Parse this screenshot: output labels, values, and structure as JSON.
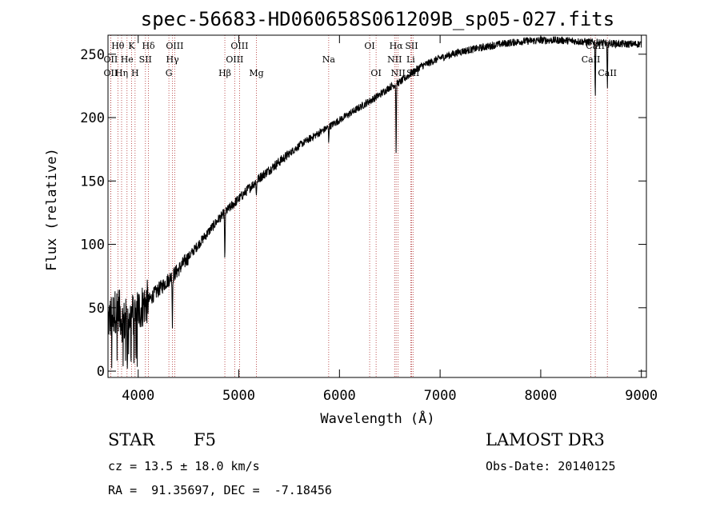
{
  "chart_data": {
    "type": "line",
    "title": "spec-56683-HD060658S061209B_sp05-027.fits",
    "xlabel": "Wavelength (Å)",
    "ylabel": "Flux (relative)",
    "xlim": [
      3700,
      9050
    ],
    "ylim": [
      -5,
      265
    ],
    "x_ticks": [
      4000,
      5000,
      6000,
      7000,
      8000,
      9000
    ],
    "y_ticks": [
      0,
      50,
      100,
      150,
      200,
      250
    ],
    "x_tick_labels": [
      "4000",
      "5000",
      "6000",
      "7000",
      "8000",
      "9000"
    ],
    "y_tick_labels": [
      "0",
      "50",
      "100",
      "150",
      "200",
      "250"
    ],
    "spectral_lines": [
      {
        "label": "OII",
        "wavelength": 3727,
        "row": 2
      },
      {
        "label": "Hθ",
        "wavelength": 3798,
        "row": 1
      },
      {
        "label": "OII",
        "wavelength": 3727,
        "row": 3
      },
      {
        "label": "Hη",
        "wavelength": 3835,
        "row": 3
      },
      {
        "label": "K",
        "wavelength": 3934,
        "row": 1
      },
      {
        "label": "He",
        "wavelength": 3889,
        "row": 2
      },
      {
        "label": "H",
        "wavelength": 3969,
        "row": 3
      },
      {
        "label": "Hδ",
        "wavelength": 4102,
        "row": 1
      },
      {
        "label": "SII",
        "wavelength": 4072,
        "row": 2
      },
      {
        "label": "OIII",
        "wavelength": 4363,
        "row": 1
      },
      {
        "label": "Hγ",
        "wavelength": 4341,
        "row": 2
      },
      {
        "label": "G",
        "wavelength": 4305,
        "row": 3
      },
      {
        "label": "Hβ",
        "wavelength": 4861,
        "row": 3
      },
      {
        "label": "OIII",
        "wavelength": 5007,
        "row": 1
      },
      {
        "label": "OIII",
        "wavelength": 4959,
        "row": 2
      },
      {
        "label": "Mg",
        "wavelength": 5175,
        "row": 3
      },
      {
        "label": "Na",
        "wavelength": 5893,
        "row": 2
      },
      {
        "label": "OI",
        "wavelength": 6300,
        "row": 1
      },
      {
        "label": "OI",
        "wavelength": 6364,
        "row": 3
      },
      {
        "label": "Hα",
        "wavelength": 6563,
        "row": 1
      },
      {
        "label": "SII",
        "wavelength": 6717,
        "row": 1
      },
      {
        "label": "NII",
        "wavelength": 6548,
        "row": 2
      },
      {
        "label": "Li",
        "wavelength": 6708,
        "row": 2
      },
      {
        "label": "NII",
        "wavelength": 6583,
        "row": 3
      },
      {
        "label": "SII",
        "wavelength": 6731,
        "row": 3
      },
      {
        "label": "CaII",
        "wavelength": 8542,
        "row": 1
      },
      {
        "label": "CaII",
        "wavelength": 8498,
        "row": 2
      },
      {
        "label": "CaII",
        "wavelength": 8662,
        "row": 3
      }
    ],
    "spectrum_points": [
      [
        3700,
        40
      ],
      [
        3750,
        45
      ],
      [
        3800,
        50
      ],
      [
        3850,
        38
      ],
      [
        3900,
        42
      ],
      [
        3950,
        45
      ],
      [
        4000,
        48
      ],
      [
        4050,
        52
      ],
      [
        4100,
        55
      ],
      [
        4150,
        60
      ],
      [
        4200,
        64
      ],
      [
        4300,
        72
      ],
      [
        4400,
        80
      ],
      [
        4500,
        90
      ],
      [
        4600,
        100
      ],
      [
        4700,
        110
      ],
      [
        4800,
        120
      ],
      [
        4900,
        128
      ],
      [
        5000,
        136
      ],
      [
        5100,
        144
      ],
      [
        5200,
        152
      ],
      [
        5400,
        165
      ],
      [
        5600,
        178
      ],
      [
        5800,
        188
      ],
      [
        6000,
        198
      ],
      [
        6200,
        208
      ],
      [
        6400,
        218
      ],
      [
        6500,
        224
      ],
      [
        6600,
        228
      ],
      [
        6700,
        234
      ],
      [
        6800,
        240
      ],
      [
        7000,
        247
      ],
      [
        7200,
        252
      ],
      [
        7400,
        255
      ],
      [
        7600,
        258
      ],
      [
        7800,
        260
      ],
      [
        8000,
        261
      ],
      [
        8200,
        261
      ],
      [
        8400,
        260
      ],
      [
        8600,
        259
      ],
      [
        8800,
        258
      ],
      [
        9000,
        258
      ]
    ],
    "absorption_features": [
      {
        "wavelength": 4340,
        "depth": 40
      },
      {
        "wavelength": 4861,
        "depth": 45
      },
      {
        "wavelength": 5175,
        "depth": 12
      },
      {
        "wavelength": 5893,
        "depth": 12
      },
      {
        "wavelength": 6563,
        "depth": 60
      },
      {
        "wavelength": 8542,
        "depth": 45
      },
      {
        "wavelength": 8662,
        "depth": 40
      }
    ]
  },
  "info": {
    "object_class": "STAR",
    "subclass": "F5",
    "survey": "LAMOST DR3",
    "redshift": "cz = 13.5 ± 18.0 km/s",
    "obs_date": "Obs-Date: 20140125",
    "coords": "RA =  91.35697, DEC =  -7.18456"
  }
}
